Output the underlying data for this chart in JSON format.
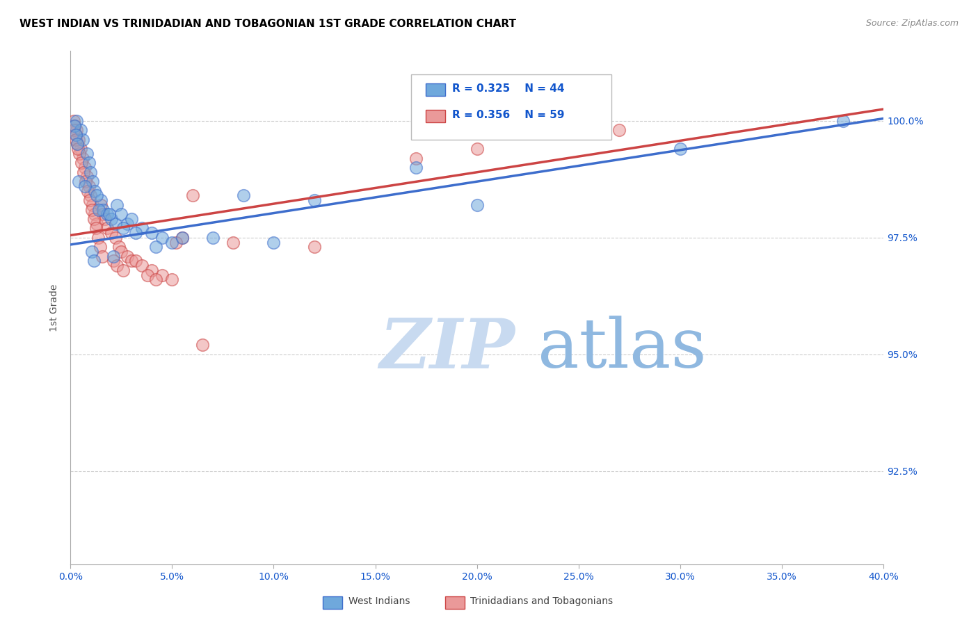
{
  "title": "WEST INDIAN VS TRINIDADIAN AND TOBAGONIAN 1ST GRADE CORRELATION CHART",
  "source": "Source: ZipAtlas.com",
  "ylabel_label": "1st Grade",
  "legend_blue_r": "R = 0.325",
  "legend_blue_n": "N = 44",
  "legend_pink_r": "R = 0.356",
  "legend_pink_n": "N = 59",
  "legend_label_blue": "West Indians",
  "legend_label_pink": "Trinidadians and Tobagonians",
  "color_blue": "#6fa8dc",
  "color_pink": "#ea9999",
  "color_blue_line": "#3d6dcc",
  "color_pink_line": "#cc4444",
  "color_legend_text": "#1155cc",
  "color_title": "#000000",
  "color_source": "#888888",
  "color_axis_labels": "#1155cc",
  "color_watermark_zip": "#c8daf0",
  "color_watermark_atlas": "#8fb8e0",
  "color_grid": "#cccccc",
  "xlim": [
    0.0,
    40.0
  ],
  "ylim": [
    90.5,
    101.5
  ],
  "yticks": [
    92.5,
    95.0,
    97.5,
    100.0
  ],
  "xticks": [
    0.0,
    5.0,
    10.0,
    15.0,
    20.0,
    25.0,
    30.0,
    35.0,
    40.0
  ],
  "blue_line_x": [
    0.0,
    40.0
  ],
  "blue_line_y": [
    97.35,
    100.05
  ],
  "pink_line_x": [
    0.0,
    40.0
  ],
  "pink_line_y": [
    97.55,
    100.25
  ],
  "blue_x": [
    0.3,
    0.5,
    0.6,
    0.8,
    0.9,
    1.0,
    1.1,
    1.2,
    1.5,
    1.6,
    1.8,
    2.0,
    2.2,
    2.3,
    2.5,
    2.8,
    3.0,
    3.5,
    4.0,
    4.5,
    5.0,
    7.0,
    10.0,
    12.0,
    17.0,
    20.0,
    30.0,
    38.0,
    0.4,
    0.7,
    1.3,
    1.4,
    1.9,
    2.6,
    3.2,
    4.2,
    5.5,
    8.5,
    0.2,
    0.25,
    0.35,
    1.05,
    1.15,
    2.1
  ],
  "blue_y": [
    100.0,
    99.8,
    99.6,
    99.3,
    99.1,
    98.9,
    98.7,
    98.5,
    98.3,
    98.1,
    98.0,
    97.9,
    97.8,
    98.2,
    98.0,
    97.8,
    97.9,
    97.7,
    97.6,
    97.5,
    97.4,
    97.5,
    97.4,
    98.3,
    99.0,
    98.2,
    99.4,
    100.0,
    98.7,
    98.6,
    98.4,
    98.1,
    98.0,
    97.7,
    97.6,
    97.3,
    97.5,
    98.4,
    99.9,
    99.7,
    99.5,
    97.2,
    97.0,
    97.1
  ],
  "pink_x": [
    0.15,
    0.2,
    0.3,
    0.4,
    0.5,
    0.6,
    0.7,
    0.8,
    0.9,
    1.0,
    1.1,
    1.2,
    1.3,
    1.5,
    1.6,
    1.7,
    1.8,
    2.0,
    2.2,
    2.4,
    2.5,
    2.8,
    3.0,
    3.2,
    3.5,
    4.0,
    4.5,
    5.0,
    5.5,
    6.0,
    8.0,
    12.0,
    17.0,
    20.0,
    27.0,
    0.25,
    0.35,
    0.45,
    0.55,
    0.65,
    0.75,
    0.85,
    0.95,
    1.05,
    1.15,
    1.25,
    1.35,
    1.45,
    1.55,
    2.1,
    2.3,
    2.6,
    3.8,
    4.2,
    5.2,
    0.18,
    0.28,
    0.38,
    6.5
  ],
  "pink_y": [
    100.0,
    99.9,
    99.8,
    99.6,
    99.4,
    99.2,
    99.0,
    98.8,
    98.6,
    98.4,
    98.2,
    98.0,
    97.8,
    98.2,
    98.0,
    97.9,
    97.7,
    97.6,
    97.5,
    97.3,
    97.2,
    97.1,
    97.0,
    97.0,
    96.9,
    96.8,
    96.7,
    96.6,
    97.5,
    98.4,
    97.4,
    97.3,
    99.2,
    99.4,
    99.8,
    99.7,
    99.5,
    99.3,
    99.1,
    98.9,
    98.7,
    98.5,
    98.3,
    98.1,
    97.9,
    97.7,
    97.5,
    97.3,
    97.1,
    97.0,
    96.9,
    96.8,
    96.7,
    96.6,
    97.4,
    99.8,
    99.6,
    99.4,
    95.2
  ]
}
